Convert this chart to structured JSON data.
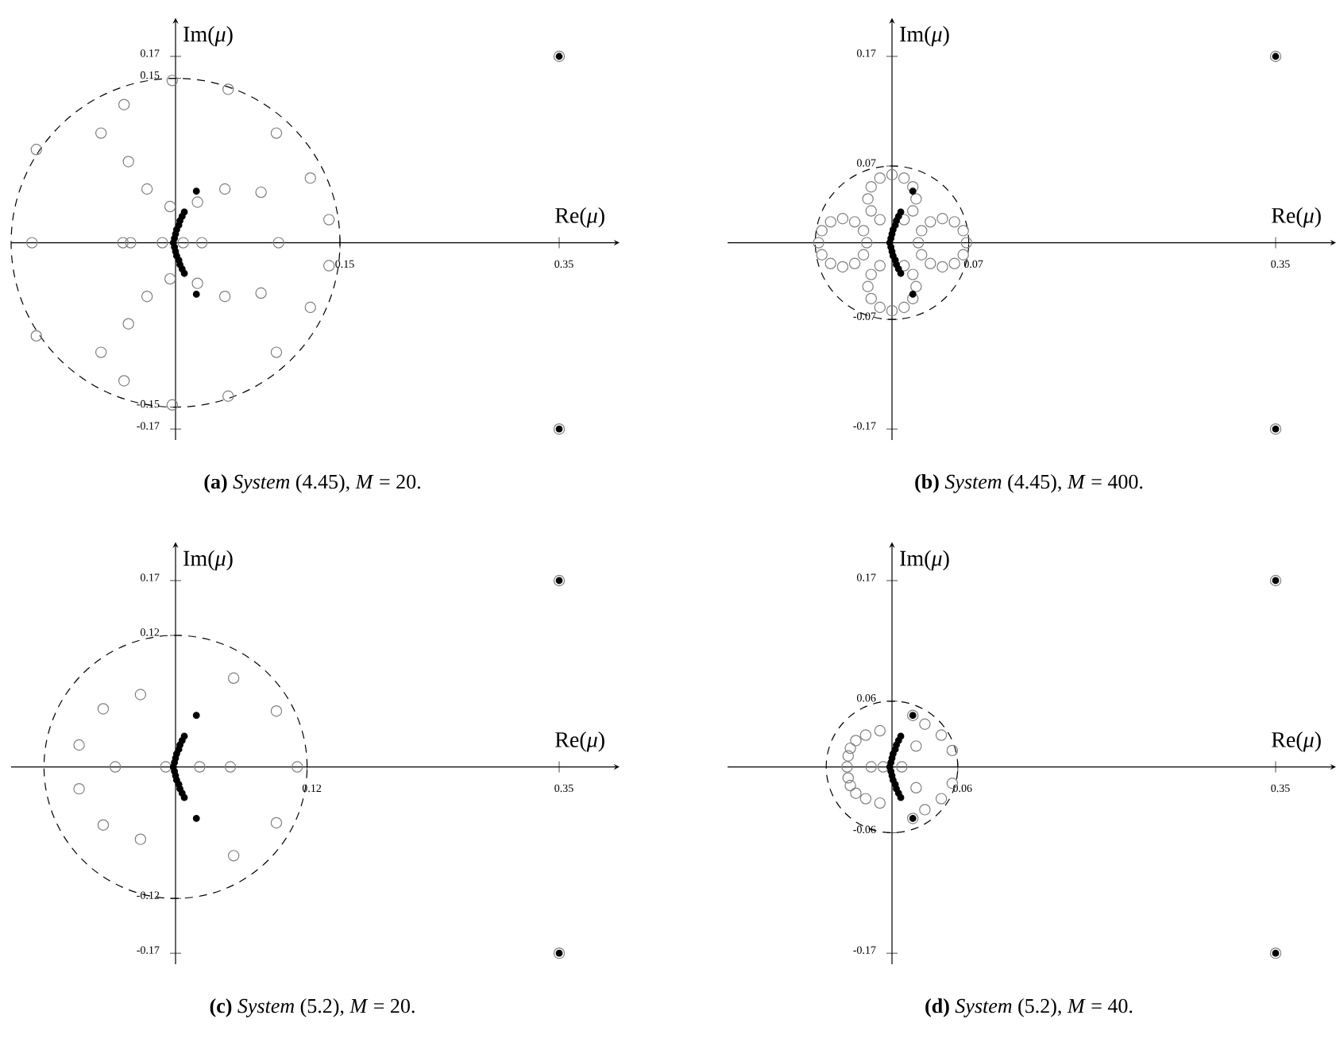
{
  "chart_data": [
    {
      "type": "scatter",
      "title": "**(a)** *System* (4.45), *M* = 20.",
      "xlabel": "Re(*μ*)",
      "ylabel": "Im(*μ*)",
      "xlim": [
        -0.15,
        0.4
      ],
      "ylim": [
        -0.18,
        0.2
      ],
      "xticks": [
        0.15,
        0.35
      ],
      "yticks": [
        -0.17,
        -0.15,
        0.15,
        0.17
      ],
      "marker": "circle",
      "series": [
        {
          "color": "#808080",
          "x": [
            -0.003,
            0.048,
            -0.047,
            0.092,
            -0.068,
            -0.127,
            -0.043,
            0.123,
            -0.026,
            0.045,
            0.078,
            0.02,
            -0.005,
            0.14,
            -0.131,
            -0.048,
            -0.041,
            -0.012,
            0.007,
            0.024,
            0.094,
            0.14,
            -0.005,
            0.02,
            -0.026,
            0.045,
            0.078,
            0.123,
            -0.043,
            -0.068,
            0.092,
            -0.127,
            -0.047,
            0.048,
            -0.003,
            0.35,
            0.35
          ],
          "values": [
            0.148,
            0.14,
            0.126,
            0.1,
            0.1,
            0.085,
            0.074,
            0.059,
            0.049,
            0.049,
            0.046,
            0.037,
            0.033,
            0.021,
            0,
            0,
            0,
            0,
            0,
            0,
            0,
            -0.021,
            -0.033,
            -0.037,
            -0.049,
            -0.049,
            -0.046,
            -0.059,
            -0.074,
            -0.1,
            -0.1,
            -0.085,
            -0.126,
            -0.14,
            -0.148,
            0.17,
            -0.17
          ]
        },
        {
          "color": "#000000",
          "x": [
            0.008,
            0.006,
            0.004,
            0.003,
            0.001,
            0,
            -0.001,
            -0.002,
            -0.001,
            0,
            0.001,
            0.003,
            0.004,
            0.006,
            0.008,
            0.019,
            0.019,
            0.35,
            0.35
          ],
          "values": [
            0.028,
            0.024,
            0.02,
            0.016,
            0.012,
            0.008,
            0.004,
            0,
            -0.004,
            -0.008,
            -0.012,
            -0.016,
            -0.02,
            -0.024,
            -0.028,
            0.047,
            -0.047,
            0.17,
            -0.17
          ]
        }
      ]
    },
    {
      "type": "scatter",
      "title": "**(b)** *System* (4.45), *M* = 400.",
      "xlabel": "Re(*μ*)",
      "ylabel": "Im(*μ*)",
      "xlim": [
        -0.15,
        0.4
      ],
      "ylim": [
        -0.18,
        0.2
      ],
      "xticks": [
        0.07,
        0.35
      ],
      "yticks": [
        -0.17,
        -0.07,
        0.07,
        0.17
      ],
      "marker": "circle",
      "series": [
        {
          "color": "#808080",
          "x": [
            0.022,
            0.019,
            0.011,
            0,
            -0.011,
            -0.019,
            -0.022,
            -0.019,
            -0.011,
            0,
            0.011,
            0.019,
            0.022,
            0.019,
            0.011,
            0,
            -0.011,
            -0.019,
            -0.022,
            -0.019,
            -0.011,
            0,
            0.011,
            0.019,
            0.068,
            0.065,
            0.057,
            0.046,
            0.035,
            0.027,
            0.024,
            0.027,
            0.035,
            0.046,
            0.057,
            0.065,
            -0.023,
            -0.026,
            -0.034,
            -0.045,
            -0.056,
            -0.064,
            -0.067,
            -0.064,
            -0.056,
            -0.045,
            -0.034,
            -0.026,
            0.35,
            0.35
          ],
          "values": [
            0.04,
            0.051,
            0.059,
            0.062,
            0.059,
            0.051,
            0.04,
            0.029,
            0.021,
            null,
            0.021,
            0.029,
            -0.04,
            -0.029,
            -0.021,
            null,
            -0.021,
            -0.029,
            -0.04,
            -0.051,
            -0.059,
            -0.062,
            -0.059,
            -0.051,
            0,
            0.011,
            0.019,
            0.022,
            0.019,
            0.011,
            0,
            -0.011,
            -0.019,
            -0.022,
            -0.019,
            -0.011,
            0,
            0.011,
            0.019,
            0.022,
            0.019,
            0.011,
            0,
            -0.011,
            -0.019,
            -0.022,
            -0.019,
            -0.011,
            0.17,
            -0.17
          ]
        },
        {
          "color": "#000000",
          "x": [
            0.008,
            0.006,
            0.004,
            0.003,
            0.001,
            0,
            -0.001,
            -0.002,
            -0.001,
            0,
            0.001,
            0.003,
            0.004,
            0.006,
            0.008,
            0.019,
            0.019,
            0.35,
            0.35
          ],
          "values": [
            0.028,
            0.024,
            0.02,
            0.016,
            0.012,
            0.008,
            0.004,
            0,
            -0.004,
            -0.008,
            -0.012,
            -0.016,
            -0.02,
            -0.024,
            -0.028,
            0.047,
            -0.047,
            0.17,
            -0.17
          ]
        }
      ]
    },
    {
      "type": "scatter",
      "title": "**(c)** *System* (5.2), *M* = 20.",
      "xlabel": "Re(*μ*)",
      "ylabel": "Im(*μ*)",
      "xlim": [
        -0.15,
        0.4
      ],
      "ylim": [
        -0.18,
        0.2
      ],
      "xticks": [
        0.12,
        0.35
      ],
      "yticks": [
        -0.17,
        -0.12,
        0.12,
        0.17
      ],
      "marker": "circle",
      "series": [
        {
          "color": "#808080",
          "x": [
            0.053,
            -0.032,
            -0.066,
            0.092,
            -0.088,
            -0.055,
            -0.009,
            0.022,
            0.05,
            0.111,
            -0.088,
            -0.066,
            -0.032,
            0.092,
            0.053,
            0.35,
            0.35
          ],
          "values": [
            0.081,
            0.066,
            0.053,
            0.051,
            0.02,
            0,
            0,
            0,
            0,
            0,
            -0.02,
            -0.053,
            -0.066,
            -0.051,
            -0.081,
            0.17,
            -0.17
          ]
        },
        {
          "color": "#000000",
          "x": [
            0.008,
            0.006,
            0.004,
            0.003,
            0.001,
            0,
            -0.001,
            -0.002,
            -0.001,
            0,
            0.001,
            0.003,
            0.004,
            0.006,
            0.008,
            0.019,
            0.019,
            0.35,
            0.35
          ],
          "values": [
            0.028,
            0.024,
            0.02,
            0.016,
            0.012,
            0.008,
            0.004,
            0,
            -0.004,
            -0.008,
            -0.012,
            -0.016,
            -0.02,
            -0.024,
            -0.028,
            0.047,
            -0.047,
            0.17,
            -0.17
          ]
        }
      ]
    },
    {
      "type": "scatter",
      "title": "**(d)** *System* (5.2), *M* = 40.",
      "xlabel": "Re(*μ*)",
      "ylabel": "Im(*μ*)",
      "xlim": [
        -0.15,
        0.4
      ],
      "ylim": [
        -0.18,
        0.2
      ],
      "xticks": [
        0.06,
        0.35
      ],
      "yticks": [
        -0.17,
        -0.06,
        0.06,
        0.17
      ],
      "marker": "circle",
      "series": [
        {
          "color": "#808080",
          "x": [
            -0.011,
            -0.024,
            -0.033,
            -0.038,
            -0.04,
            -0.041,
            -0.019,
            -0.008,
            0.009,
            -0.04,
            -0.038,
            -0.033,
            -0.024,
            -0.011,
            0.019,
            0.03,
            0.045,
            0.055,
            0.022,
            0.022,
            0.055,
            0.045,
            0.03,
            0.019,
            0.35,
            0.35
          ],
          "values": [
            0.033,
            0.029,
            0.024,
            0.017,
            0.01,
            0,
            0,
            0,
            0,
            -0.01,
            -0.017,
            -0.024,
            -0.029,
            -0.033,
            0.047,
            0.039,
            0.029,
            0.015,
            0.019,
            -0.019,
            -0.015,
            -0.029,
            -0.039,
            -0.047,
            0.17,
            -0.17
          ]
        },
        {
          "color": "#000000",
          "x": [
            0.008,
            0.006,
            0.004,
            0.003,
            0.001,
            0,
            -0.001,
            -0.002,
            -0.001,
            0,
            0.001,
            0.003,
            0.004,
            0.006,
            0.008,
            0.019,
            0.019,
            0.35,
            0.35
          ],
          "values": [
            0.028,
            0.024,
            0.02,
            0.016,
            0.012,
            0.008,
            0.004,
            0,
            -0.004,
            -0.008,
            -0.012,
            -0.016,
            -0.02,
            -0.024,
            -0.028,
            0.047,
            -0.047,
            0.17,
            -0.17
          ]
        }
      ]
    }
  ]
}
